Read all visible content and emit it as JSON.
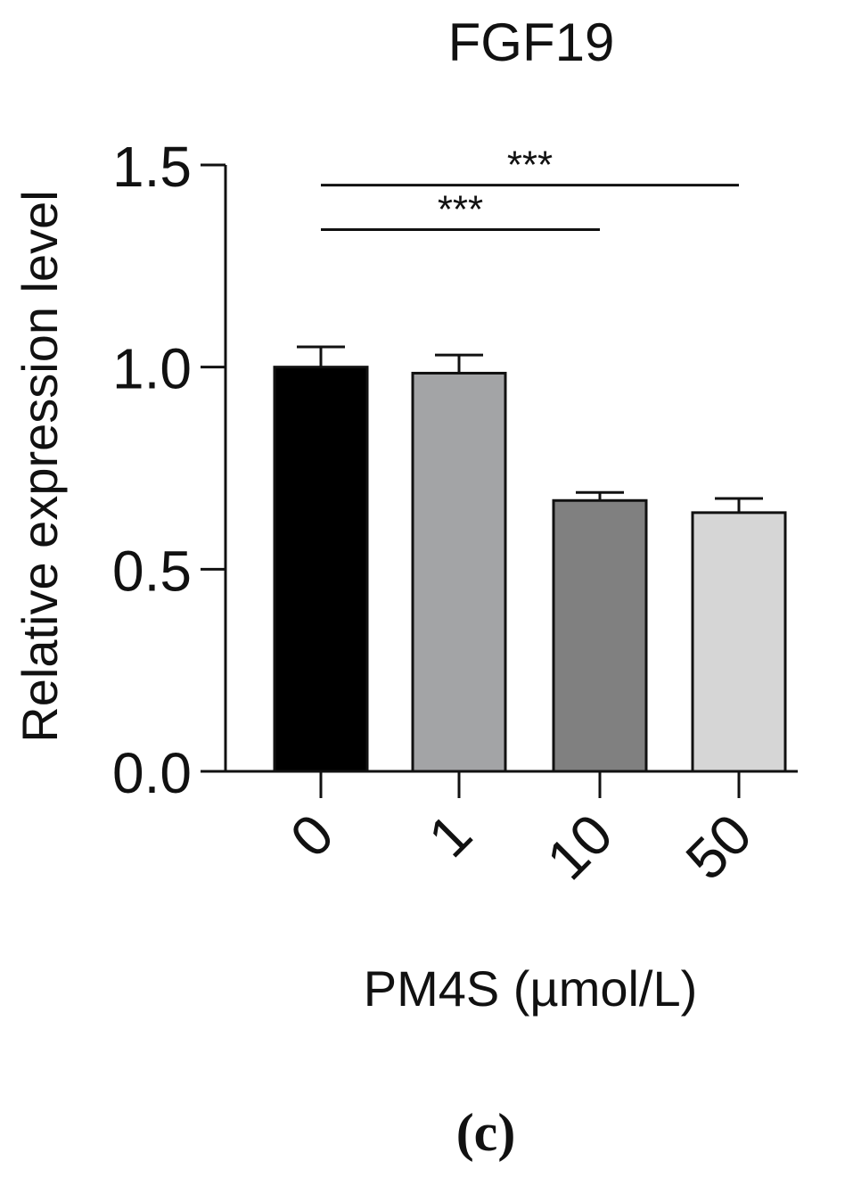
{
  "chart_data": {
    "type": "bar",
    "title": "FGF19",
    "xlabel": "PM4S (µmol/L)",
    "ylabel": "Relative expression level",
    "categories": [
      "0",
      "1",
      "10",
      "50"
    ],
    "values": [
      1.0,
      0.985,
      0.67,
      0.64
    ],
    "errors": [
      0.05,
      0.045,
      0.02,
      0.035
    ],
    "bar_colors": [
      "#000000",
      "#a3a4a6",
      "#808080",
      "#d6d6d6"
    ],
    "ylim": [
      0,
      1.5
    ],
    "yticks": [
      0.0,
      0.5,
      1.0,
      1.5
    ],
    "ytick_labels": [
      "0.0",
      "0.5",
      "1.0",
      "1.5"
    ],
    "grid": false,
    "significance": [
      {
        "from": "0",
        "to": "50",
        "label": "***",
        "y": 1.45
      },
      {
        "from": "0",
        "to": "10",
        "label": "***",
        "y": 1.34
      }
    ]
  },
  "panel_label": "(c)"
}
